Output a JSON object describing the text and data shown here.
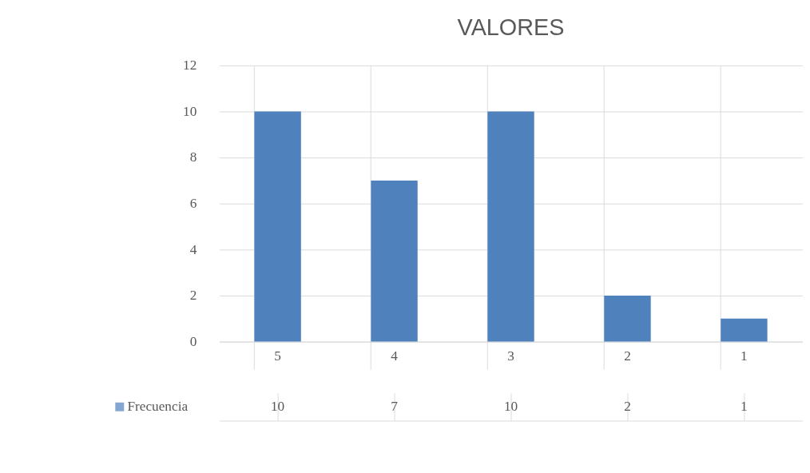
{
  "chart_data": {
    "type": "bar",
    "title": "VALORES",
    "categories": [
      "5",
      "4",
      "3",
      "2",
      "1"
    ],
    "series": [
      {
        "name": "Frecuencia",
        "color": "#4f81bd",
        "values": [
          10,
          7,
          10,
          2,
          1
        ]
      }
    ],
    "ylim": [
      0,
      12
    ],
    "yticks": [
      0,
      2,
      4,
      6,
      8,
      10,
      12
    ],
    "grid": "y",
    "legend": "bottom",
    "data_labels": true
  }
}
